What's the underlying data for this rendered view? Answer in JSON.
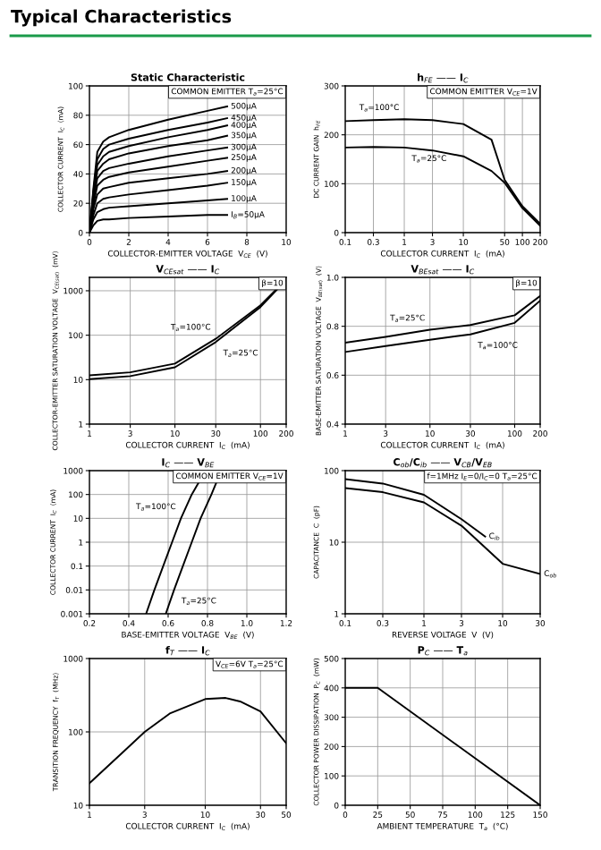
{
  "chart_data": [
    {
      "type": "line",
      "title": "Static Characteristic",
      "xlabel": "COLLECTOR-EMITTER VOLTAGE  V$_{CE}$  (V)",
      "ylabel": "COLLECTOR CURRENT  I$_{C}$  (mA)",
      "x": [
        0,
        0.2,
        0.4,
        0.7,
        1,
        2,
        4,
        6,
        7
      ],
      "xlim": [
        0,
        10
      ],
      "xticks": [
        0,
        2,
        4,
        6,
        8,
        10
      ],
      "ylim": [
        0,
        100
      ],
      "yticks": [
        0,
        20,
        40,
        60,
        80,
        100
      ],
      "grid": true,
      "legend": false,
      "marker": "none",
      "line_style": "solid",
      "annotations": [
        "Typical Characteristics",
        "COMMON EMITTER T$_{a}$=25°C"
      ],
      "series": [
        {
          "name": "500µA",
          "color": "#000000",
          "values": [
            0,
            30,
            55,
            62,
            65,
            70,
            77,
            83,
            86
          ]
        },
        {
          "name": "450µA",
          "color": "#000000",
          "values": [
            0,
            28,
            50,
            57,
            60,
            64,
            70,
            75,
            78
          ]
        },
        {
          "name": "400µA",
          "color": "#000000",
          "values": [
            0,
            26,
            46,
            52,
            55,
            59,
            65,
            70,
            73
          ]
        },
        {
          "name": "350µA",
          "color": "#000000",
          "values": [
            0,
            24,
            42,
            47,
            50,
            54,
            59,
            63,
            66
          ]
        },
        {
          "name": "300µA",
          "color": "#000000",
          "values": [
            0,
            22,
            37,
            42,
            44,
            47,
            52,
            56,
            58
          ]
        },
        {
          "name": "250µA",
          "color": "#000000",
          "values": [
            0,
            19,
            32,
            36,
            38,
            41,
            45,
            49,
            51
          ]
        },
        {
          "name": "200µA",
          "color": "#000000",
          "values": [
            0,
            16,
            26,
            30,
            31,
            34,
            37,
            40,
            42
          ]
        },
        {
          "name": "150µA",
          "color": "#000000",
          "values": [
            0,
            12,
            20,
            23,
            24,
            26,
            29,
            32,
            34
          ]
        },
        {
          "name": "100µA",
          "color": "#000000",
          "values": [
            0,
            9,
            14,
            16,
            17,
            18,
            20,
            22,
            23
          ]
        },
        {
          "name": "I$_{B}$=50µA",
          "color": "#000000",
          "values": [
            0,
            5,
            8,
            9,
            9,
            10,
            11,
            12,
            12
          ]
        }
      ]
    },
    {
      "type": "line",
      "title": "h$_{FE}$ —— I$_{C}$",
      "xlabel": "COLLECTOR CURRENT  I$_{C}$  (mA)",
      "ylabel": "DC CURRENT GAIN  h$_{FE}$",
      "log": "x",
      "x": [
        0.1,
        0.3,
        1,
        3,
        10,
        30,
        50,
        100,
        200
      ],
      "xlim": [
        0.1,
        200
      ],
      "xticks": [
        0.1,
        0.3,
        1,
        3,
        10,
        50,
        100,
        200
      ],
      "ylim": [
        0,
        300
      ],
      "yticks": [
        0,
        100,
        200,
        300
      ],
      "grid": true,
      "legend": false,
      "marker": "none",
      "line_style": "solid",
      "annotations": [
        "COMMON EMITTER V$_{CE}$=1V",
        {
          "text": "T$_{a}$=100°C",
          "x": 1,
          "y": 232
        },
        {
          "text": "T$_{a}$=25°C",
          "x": 1,
          "y": 174
        }
      ],
      "series": [
        {
          "color": "#000000",
          "values": [
            228,
            230,
            232,
            230,
            222,
            190,
            108,
            54,
            18
          ]
        },
        {
          "color": "#000000",
          "values": [
            174,
            175,
            174,
            168,
            156,
            126,
            102,
            50,
            14
          ]
        }
      ]
    },
    {
      "type": "line",
      "title": "V$_{CEsat}$ —— I$_{C}$",
      "xlabel": "COLLECTOR CURRENT  I$_{C}$  (mA)",
      "ylabel": "COLLECTOR-EMITTER SATURATION VOLTAGE  V$_{CE(sat)}$  (mV)",
      "log": "xy",
      "x": [
        1,
        3,
        10,
        30,
        100,
        200
      ],
      "xlim": [
        1,
        200
      ],
      "xticks": [
        1,
        3,
        10,
        30,
        100,
        200
      ],
      "ylim": [
        1,
        2000
      ],
      "yticks": [
        1,
        10,
        100,
        1000
      ],
      "grid": true,
      "legend": false,
      "marker": "none",
      "line_style": "solid",
      "annotations": [
        "β=10",
        {
          "text": "T$_{a}$=100°C",
          "x": 30,
          "y": 83
        },
        {
          "text": "T$_{a}$=25°C",
          "x": 30,
          "y": 70
        }
      ],
      "series": [
        {
          "color": "#000000",
          "values": [
            12.5,
            14.6,
            23,
            83,
            470,
            1800
          ]
        },
        {
          "color": "#000000",
          "values": [
            10.3,
            12,
            19,
            70,
            430,
            1750
          ]
        }
      ]
    },
    {
      "type": "line",
      "title": "V$_{BEsat}$ —— I$_{C}$",
      "xlabel": "COLLECTOR CURRENT  I$_{C}$  (mA)",
      "ylabel": "BASE-EMITTER SATURATION VOLTAGE  V$_{BE(sat)}$  (V)",
      "log": "x",
      "x": [
        1,
        3,
        10,
        30,
        100,
        200
      ],
      "xlim": [
        1,
        200
      ],
      "xticks": [
        1,
        3,
        10,
        30,
        100,
        200
      ],
      "ylim": [
        0.4,
        1.0
      ],
      "yticks": [
        0.4,
        0.6,
        0.8,
        {
          "value": 1.0,
          "label": "1.0"
        }
      ],
      "grid": true,
      "legend": false,
      "marker": "none",
      "line_style": "solid",
      "annotations": [
        "β=10",
        {
          "text": "T$_{a}$=25°C",
          "x": 10,
          "y": 0.786
        },
        {
          "text": "T$_{a}$=100°C",
          "x": 30,
          "y": 0.767
        }
      ],
      "series": [
        {
          "color": "#000000",
          "values": [
            0.733,
            0.757,
            0.786,
            0.805,
            0.845,
            0.924
          ]
        },
        {
          "color": "#000000",
          "values": [
            0.695,
            0.719,
            0.745,
            0.767,
            0.814,
            0.905
          ]
        }
      ]
    },
    {
      "type": "line",
      "title": "I$_{C}$ —— V$_{BE}$",
      "xlabel": "BASE-EMITTER VOLTAGE  V$_{BE}$  (V)",
      "ylabel": "COLLECTOR CURRENT  I$_{C}$  (mA)",
      "log": "y",
      "xlim": [
        0.2,
        1.2
      ],
      "xticks": [
        0.2,
        0.4,
        0.6,
        0.8,
        {
          "value": 1.0,
          "label": "1.0"
        },
        1.2
      ],
      "ylim": [
        0.001,
        1000
      ],
      "yticks": [
        0.001,
        0.01,
        0.1,
        1,
        10,
        100,
        1000
      ],
      "grid": true,
      "legend": false,
      "marker": "none",
      "line_style": "solid",
      "annotations": [
        "COMMON EMITTER V$_{CE}$=1V",
        {
          "text": "T$_{a}$=100°C",
          "x": 0.665,
          "y": 10
        },
        {
          "text": "T$_{a}$=25°C",
          "x": 0.63,
          "y": 0.01
        }
      ],
      "series": [
        {
          "color": "#000000",
          "x": [
            0.488,
            0.53,
            0.575,
            0.62,
            0.665,
            0.72,
            0.79
          ],
          "values": [
            0.001,
            0.01,
            0.1,
            1,
            10,
            100,
            1000
          ]
        },
        {
          "color": "#000000",
          "x": [
            0.588,
            0.63,
            0.675,
            0.72,
            0.765,
            0.82,
            0.87
          ],
          "values": [
            0.001,
            0.01,
            0.1,
            1,
            10,
            100,
            1000
          ]
        }
      ]
    },
    {
      "type": "line",
      "title": "C$_{ob}$/C$_{ib}$ —— V$_{CB}$/V$_{EB}$",
      "xlabel": "REVERSE VOLTAGE  V  (V)",
      "ylabel": "CAPACITANCE  C  (pF)",
      "log": "xy",
      "xlim": [
        0.1,
        30
      ],
      "xticks": [
        0.1,
        0.3,
        1,
        3,
        10,
        30
      ],
      "ylim": [
        1,
        100
      ],
      "yticks": [
        1,
        10,
        100
      ],
      "grid": true,
      "legend": false,
      "marker": "none",
      "line_style": "solid",
      "annotations": [
        "f=1MHz I$_{E}$=0/I$_{C}$=0 T$_{a}$=25°C"
      ],
      "series": [
        {
          "name": "C$_{ib}$",
          "color": "#000000",
          "x": [
            0.1,
            0.3,
            1,
            3,
            6
          ],
          "values": [
            76,
            66,
            46,
            21,
            12
          ]
        },
        {
          "name": "C$_{ob}$",
          "color": "#000000",
          "x": [
            0.1,
            0.3,
            1,
            3,
            10,
            30
          ],
          "values": [
            57,
            50,
            36,
            17,
            5,
            3.6
          ]
        }
      ]
    },
    {
      "type": "line",
      "title": "f$_{T}$ —— I$_{C}$",
      "xlabel": "COLLECTOR CURRENT  I$_{C}$  (mA)",
      "ylabel": "TRANSITION FREQUENCY  f$_{T}$  (MHz)",
      "log": "xy",
      "x": [
        1,
        2,
        3,
        5,
        10,
        15,
        20,
        30,
        50
      ],
      "xlim": [
        1,
        50
      ],
      "xticks": [
        1,
        3,
        10,
        30,
        50
      ],
      "ylim": [
        10,
        1000
      ],
      "yticks": [
        10,
        100,
        1000
      ],
      "grid": true,
      "legend": false,
      "marker": "none",
      "line_style": "solid",
      "annotations": [
        "V$_{CE}$=6V T$_{a}$=25°C"
      ],
      "series": [
        {
          "color": "#000000",
          "values": [
            20,
            55,
            100,
            180,
            280,
            290,
            260,
            190,
            70
          ]
        }
      ]
    },
    {
      "type": "line",
      "title": "P$_{C}$ —— T$_{a}$",
      "xlabel": "AMBIENT TEMPERATURE  T$_{a}$  (°C)",
      "ylabel": "COLLECTOR POWER DISSIPATION  P$_{C}$  (mW)",
      "x": [
        0,
        25,
        150
      ],
      "xlim": [
        0,
        150
      ],
      "xticks": [
        0,
        25,
        50,
        75,
        100,
        125,
        150
      ],
      "ylim": [
        0,
        500
      ],
      "yticks": [
        0,
        100,
        200,
        300,
        400,
        500
      ],
      "grid": true,
      "legend": false,
      "marker": "none",
      "line_style": "solid",
      "series": [
        {
          "color": "#000000",
          "values": [
            400,
            400,
            0
          ]
        }
      ]
    }
  ]
}
